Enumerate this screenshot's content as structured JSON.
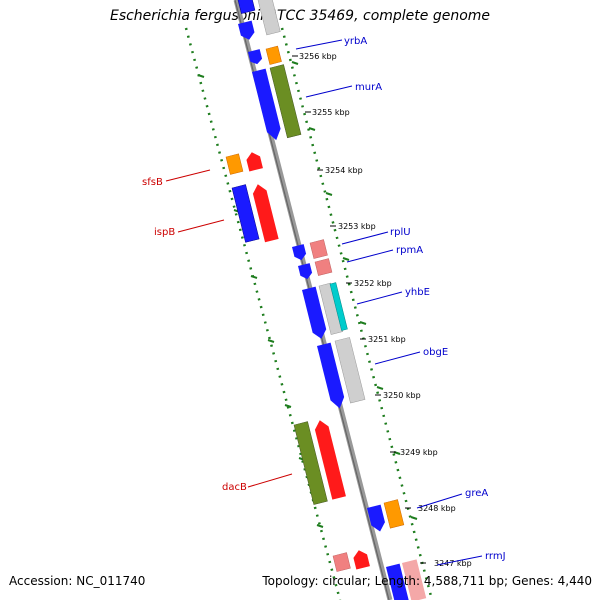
{
  "title": "Escherichia fergusonii ATCC 35469, complete genome",
  "footer": {
    "accession": "Accession: NC_011740",
    "stats": "Topology: circular; Length: 4,588,711 bp; Genes: 4,440"
  },
  "colors": {
    "backbone": "#888888",
    "ring_border": "#228822",
    "tick": "#000000",
    "label_positive": "#0000cc",
    "label_negative": "#cc0000",
    "gene_blue": "#1a1aff",
    "gene_red": "#ff1a1a",
    "gene_green": "#6b8e23",
    "gene_orange": "#ff9900",
    "gene_pink": "#f08080",
    "gene_grey": "#c8c8c8",
    "gene_cyan": "#00cccc"
  },
  "scale_labels": [
    "3256 kbp",
    "3255 kbp",
    "3254 kbp",
    "3253 kbp",
    "3252 kbp",
    "3251 kbp",
    "3250 kbp",
    "3249 kbp",
    "3248 kbp",
    "3247 kbp"
  ],
  "gene_labels_right": [
    "yrbA",
    "murA",
    "rplU",
    "rpmA",
    "yhbE",
    "obgE",
    "greA",
    "rrmJ"
  ],
  "gene_labels_left": [
    "sfsB",
    "ispB",
    "dacB"
  ]
}
